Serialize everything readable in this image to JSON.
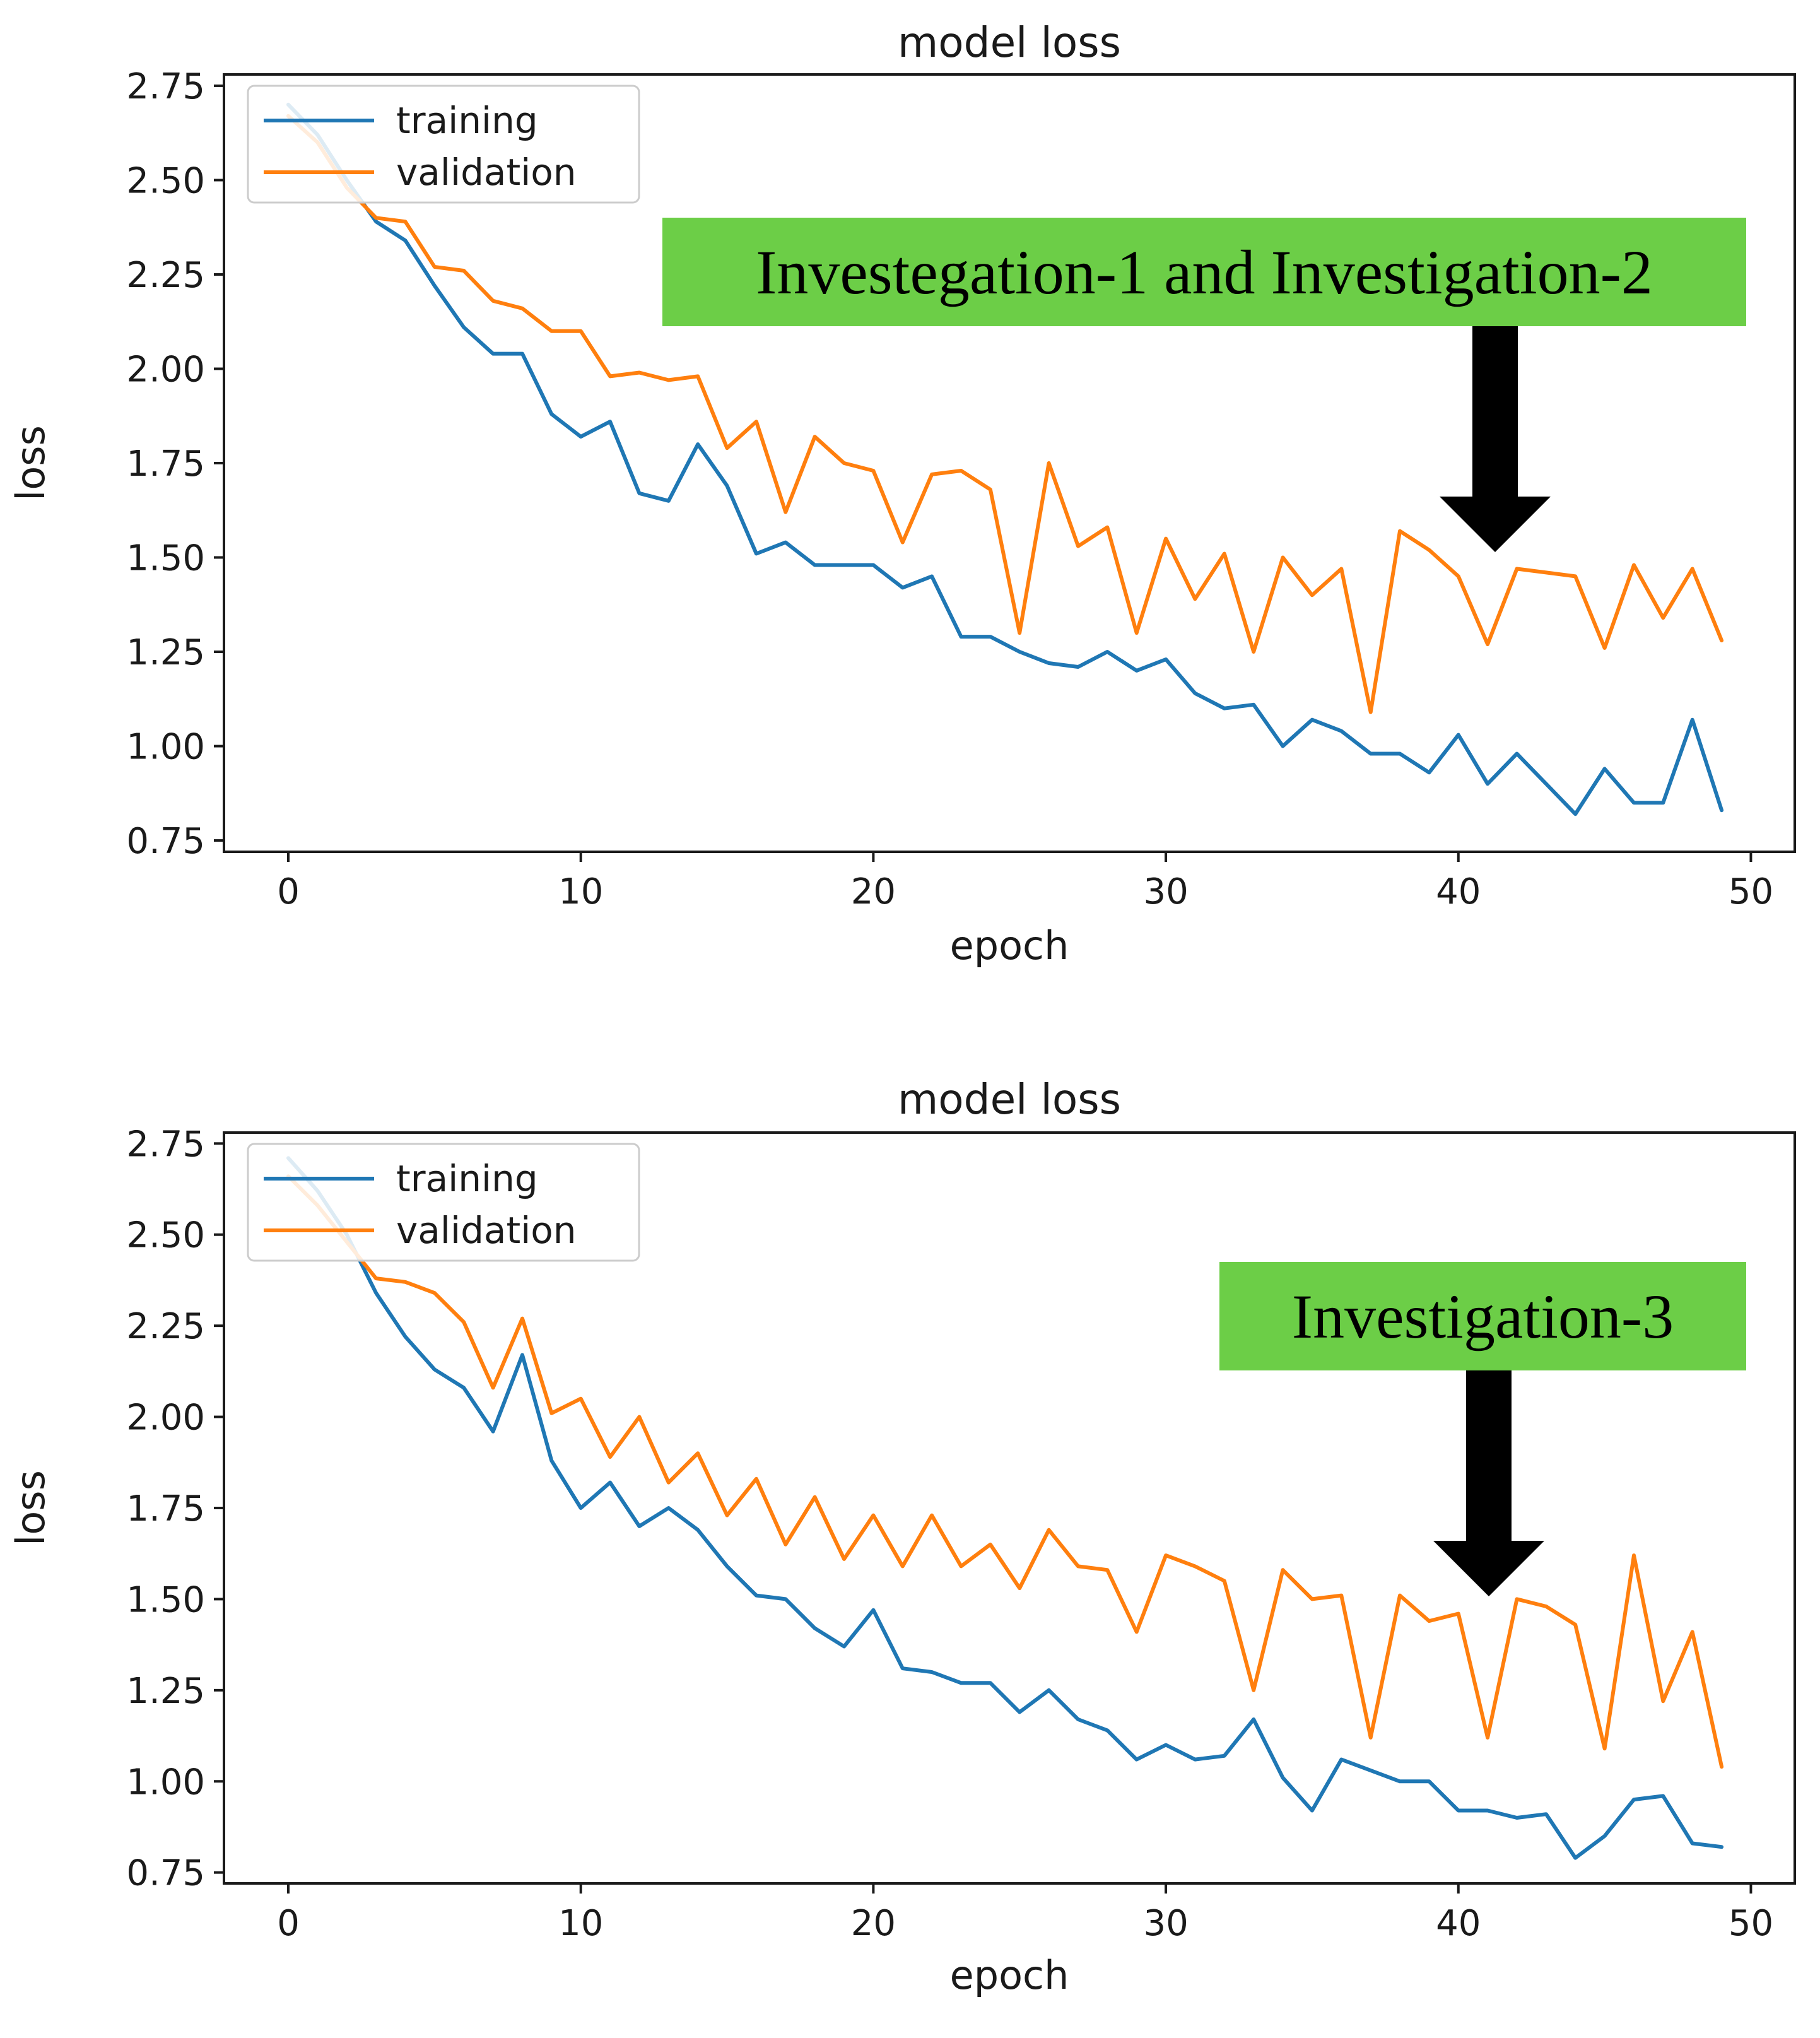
{
  "chart_data": [
    {
      "type": "line",
      "title": "model loss",
      "xlabel": "epoch",
      "ylabel": "loss",
      "xlim": [
        -2.2,
        51.5
      ],
      "ylim": [
        0.72,
        2.78
      ],
      "xticks": [
        "0",
        "10",
        "20",
        "30",
        "40",
        "50"
      ],
      "yticks": [
        "0.75",
        "1.00",
        "1.25",
        "1.50",
        "1.75",
        "2.00",
        "2.25",
        "2.50",
        "2.75"
      ],
      "legend_position": "top-left",
      "annotation": "Investegation-1 and Investigation-2",
      "annotation_color": "#6cce47",
      "series": [
        {
          "name": "training",
          "color": "#1f77b4",
          "values": [
            2.7,
            2.62,
            2.5,
            2.39,
            2.34,
            2.22,
            2.11,
            2.04,
            2.04,
            1.88,
            1.82,
            1.86,
            1.67,
            1.65,
            1.8,
            1.69,
            1.51,
            1.54,
            1.48,
            1.48,
            1.48,
            1.42,
            1.45,
            1.29,
            1.29,
            1.25,
            1.22,
            1.21,
            1.25,
            1.2,
            1.23,
            1.14,
            1.1,
            1.11,
            1.0,
            1.07,
            1.04,
            0.98,
            0.98,
            0.93,
            1.03,
            0.9,
            0.98,
            0.9,
            0.82,
            0.94,
            0.85,
            0.85,
            1.07,
            0.83
          ]
        },
        {
          "name": "validation",
          "color": "#ff7f0e",
          "values": [
            2.67,
            2.6,
            2.48,
            2.4,
            2.39,
            2.27,
            2.26,
            2.18,
            2.16,
            2.1,
            2.1,
            1.98,
            1.99,
            1.97,
            1.98,
            1.79,
            1.86,
            1.62,
            1.82,
            1.75,
            1.73,
            1.54,
            1.72,
            1.73,
            1.68,
            1.3,
            1.75,
            1.53,
            1.58,
            1.3,
            1.55,
            1.39,
            1.51,
            1.25,
            1.5,
            1.4,
            1.47,
            1.09,
            1.57,
            1.52,
            1.45,
            1.27,
            1.47,
            1.46,
            1.45,
            1.26,
            1.48,
            1.34,
            1.47,
            1.28
          ]
        }
      ]
    },
    {
      "type": "line",
      "title": "model loss",
      "xlabel": "epoch",
      "ylabel": "loss",
      "xlim": [
        -2.2,
        51.5
      ],
      "ylim": [
        0.72,
        2.78
      ],
      "xticks": [
        "0",
        "10",
        "20",
        "30",
        "40",
        "50"
      ],
      "yticks": [
        "0.75",
        "1.00",
        "1.25",
        "1.50",
        "1.75",
        "2.00",
        "2.25",
        "2.50",
        "2.75"
      ],
      "legend_position": "top-left",
      "annotation": "Investigation-3",
      "annotation_color": "#6cce47",
      "series": [
        {
          "name": "training",
          "color": "#1f77b4",
          "values": [
            2.71,
            2.62,
            2.5,
            2.34,
            2.22,
            2.13,
            2.08,
            1.96,
            2.17,
            1.88,
            1.75,
            1.82,
            1.7,
            1.75,
            1.69,
            1.59,
            1.51,
            1.5,
            1.42,
            1.37,
            1.47,
            1.31,
            1.3,
            1.27,
            1.27,
            1.19,
            1.25,
            1.17,
            1.14,
            1.06,
            1.1,
            1.06,
            1.07,
            1.17,
            1.01,
            0.92,
            1.06,
            1.03,
            1.0,
            1.0,
            0.92,
            0.92,
            0.9,
            0.91,
            0.79,
            0.85,
            0.95,
            0.96,
            0.83,
            0.82
          ]
        },
        {
          "name": "validation",
          "color": "#ff7f0e",
          "values": [
            2.66,
            2.58,
            2.48,
            2.38,
            2.37,
            2.34,
            2.26,
            2.08,
            2.27,
            2.01,
            2.05,
            1.89,
            2.0,
            1.82,
            1.9,
            1.73,
            1.83,
            1.65,
            1.78,
            1.61,
            1.73,
            1.59,
            1.73,
            1.59,
            1.65,
            1.53,
            1.69,
            1.59,
            1.58,
            1.41,
            1.62,
            1.59,
            1.55,
            1.25,
            1.58,
            1.5,
            1.51,
            1.12,
            1.51,
            1.44,
            1.46,
            1.12,
            1.5,
            1.48,
            1.43,
            1.09,
            1.62,
            1.22,
            1.41,
            1.04
          ]
        }
      ]
    }
  ]
}
